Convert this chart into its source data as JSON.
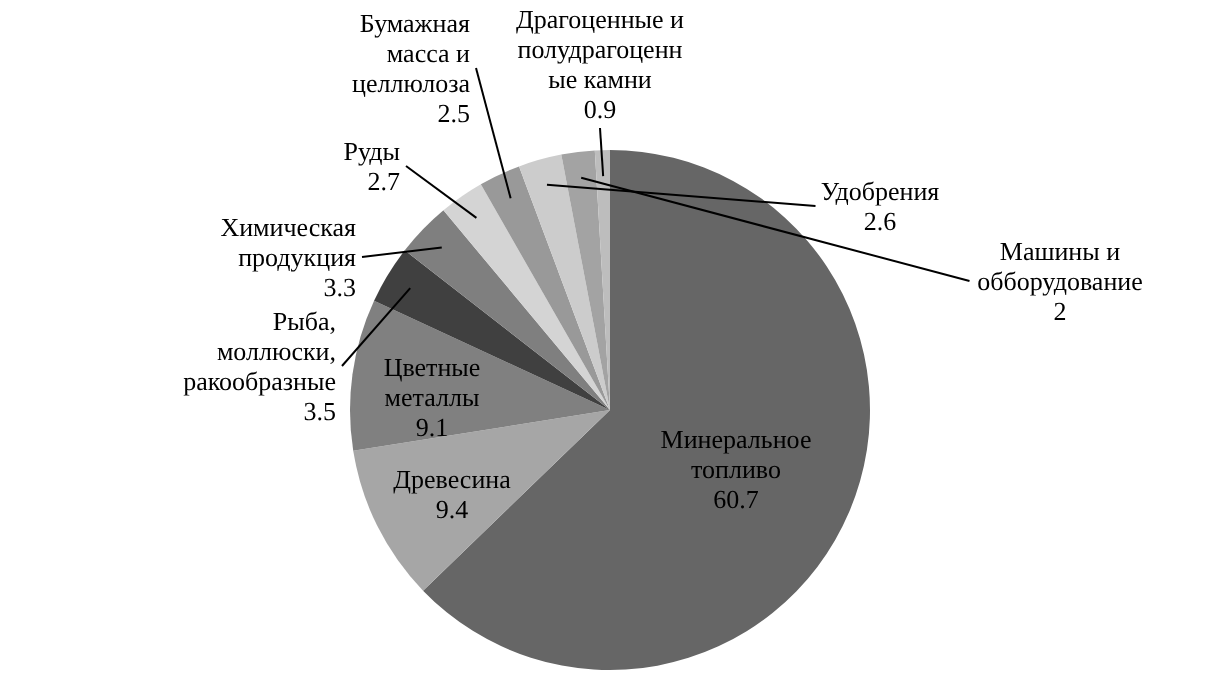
{
  "chart_data": {
    "type": "pie",
    "categories": [
      "Минеральное топливо",
      "Древесина",
      "Цветные металлы",
      "Рыба, моллюски, ракообразные",
      "Химическая продукция",
      "Руды",
      "Бумажная масса и целлюлоза",
      "Удобрения",
      "Машины и обборудование",
      "Драгоценные и полудрагоценные камни"
    ],
    "values": [
      60.7,
      9.4,
      9.1,
      3.5,
      3.3,
      2.7,
      2.5,
      2.6,
      2,
      0.9
    ],
    "colors": [
      "#666666",
      "#a6a6a6",
      "#808080",
      "#404040",
      "#7f7f7f",
      "#d4d4d4",
      "#999999",
      "#cccccc",
      "#a3a3a3",
      "#bdbdbd"
    ],
    "data_labels": true
  }
}
